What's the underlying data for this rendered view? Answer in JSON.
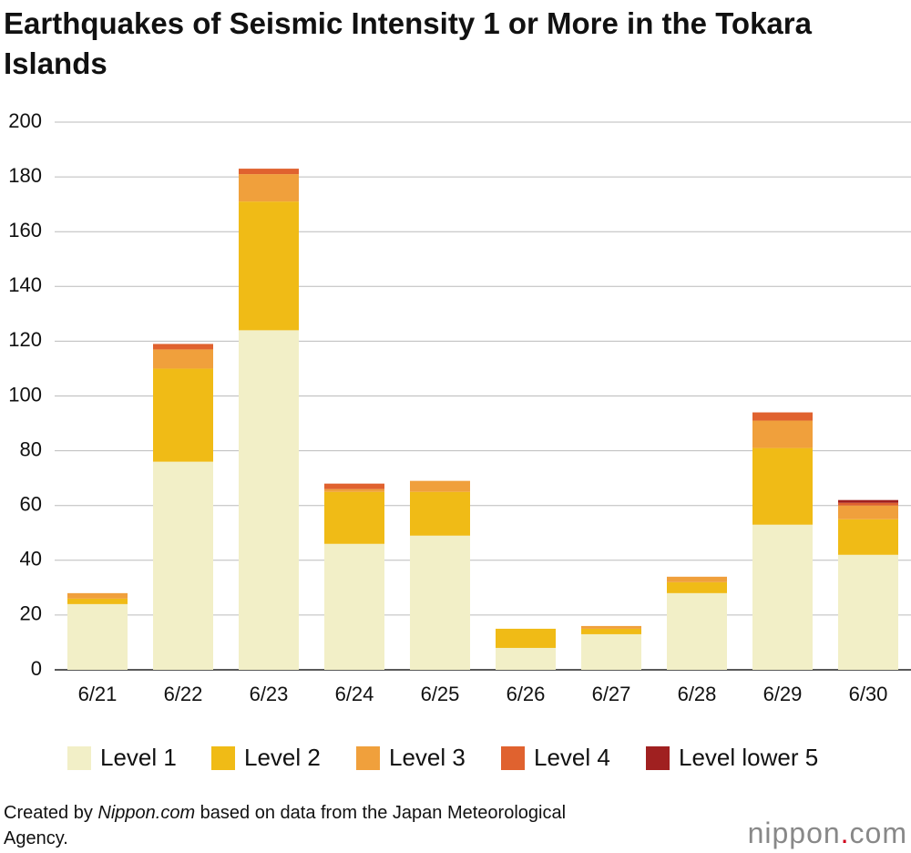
{
  "chart_data": {
    "type": "stacked-bar",
    "title": "Earthquakes of Seismic Intensity 1 or More in the Tokara Islands",
    "categories": [
      "6/21",
      "6/22",
      "6/23",
      "6/24",
      "6/25",
      "6/26",
      "6/27",
      "6/28",
      "6/29",
      "6/30"
    ],
    "series": [
      {
        "name": "Level 1",
        "color": "#f2efc7",
        "values": [
          24,
          76,
          124,
          46,
          49,
          8,
          13,
          28,
          53,
          42
        ]
      },
      {
        "name": "Level 2",
        "color": "#f0bb16",
        "values": [
          2,
          34,
          47,
          19,
          16,
          7,
          2,
          4,
          28,
          13
        ]
      },
      {
        "name": "Level 3",
        "color": "#f0a03c",
        "values": [
          2,
          7,
          10,
          1,
          4,
          0,
          1,
          2,
          10,
          5
        ]
      },
      {
        "name": "Level 4",
        "color": "#e0622f",
        "values": [
          0,
          2,
          2,
          2,
          0,
          0,
          0,
          0,
          3,
          1
        ]
      },
      {
        "name": "Level lower 5",
        "color": "#a02020",
        "values": [
          0,
          0,
          0,
          0,
          0,
          0,
          0,
          0,
          0,
          1
        ]
      }
    ],
    "ylim": [
      0,
      200
    ],
    "yticks": [
      0,
      20,
      40,
      60,
      80,
      100,
      120,
      140,
      160,
      180,
      200
    ],
    "grid": true,
    "legend": "bottom"
  },
  "footer": {
    "prefix": "Created by ",
    "site": "Nippon.com",
    "suffix": " based on data from the Japan Meteorological Agency."
  },
  "logo": {
    "name": "nippon",
    "dot": ".",
    "tld": "com"
  }
}
